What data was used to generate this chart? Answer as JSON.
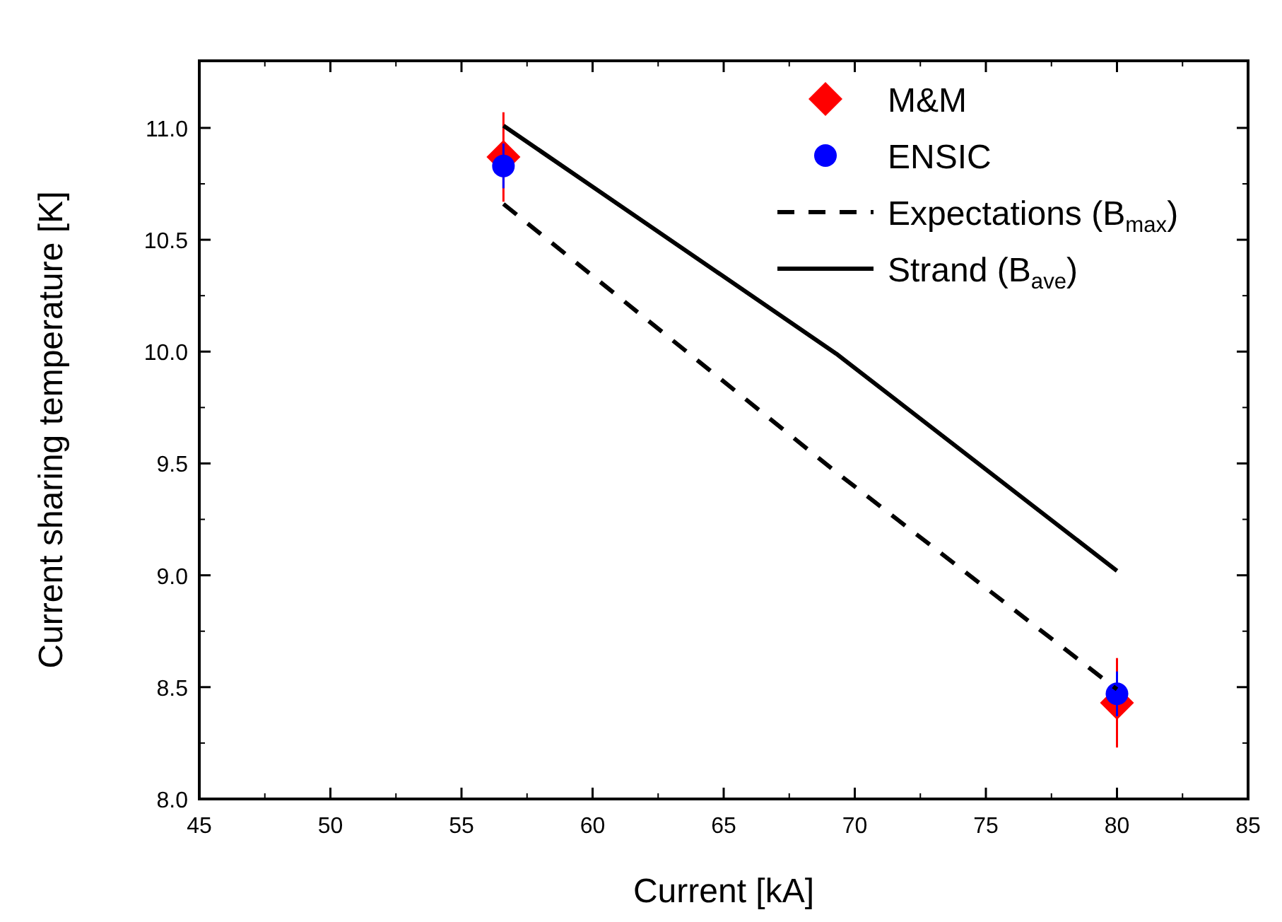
{
  "chart_data": {
    "type": "line",
    "xlabel": "Current  [kA]",
    "ylabel": "Current sharing temperature  [K]",
    "x": [
      56.6,
      80
    ],
    "xlim": [
      45,
      85
    ],
    "xticks": [
      45,
      50,
      55,
      60,
      65,
      70,
      75,
      80,
      85
    ],
    "ylim": [
      8.0,
      11.3
    ],
    "yticks": [
      {
        "value": 8,
        "label": "8.0"
      },
      8.5,
      {
        "value": 9,
        "label": "9.0"
      },
      9.5,
      {
        "value": 10,
        "label": "10.0"
      },
      10.5,
      {
        "value": 11,
        "label": "11.0"
      }
    ],
    "series": [
      {
        "name": "M&M",
        "type": "scatter",
        "marker": "diamond",
        "color": "#ff0000",
        "values": [
          10.87,
          8.43
        ],
        "errors": [
          0.2,
          0.2
        ]
      },
      {
        "name": "ENSIC",
        "type": "scatter",
        "marker": "circle",
        "color": "#0000ff",
        "values": [
          10.83,
          8.47
        ],
        "errors": [
          0.1,
          0.1
        ]
      },
      {
        "name": "Expectations (B$_{max}$)",
        "marker": "none",
        "line_style": "dashed",
        "color": "#000000",
        "x": [
          56.6,
          69.3,
          80
        ],
        "values": [
          10.66,
          9.46,
          8.49
        ]
      },
      {
        "name": "Strand (B$_{ave}$)",
        "marker": "none",
        "line_style": "solid",
        "color": "#000000",
        "x": [
          56.6,
          69.3,
          80
        ],
        "values": [
          11.01,
          9.99,
          9.02
        ]
      }
    ],
    "grid": false,
    "legend": "top right"
  }
}
